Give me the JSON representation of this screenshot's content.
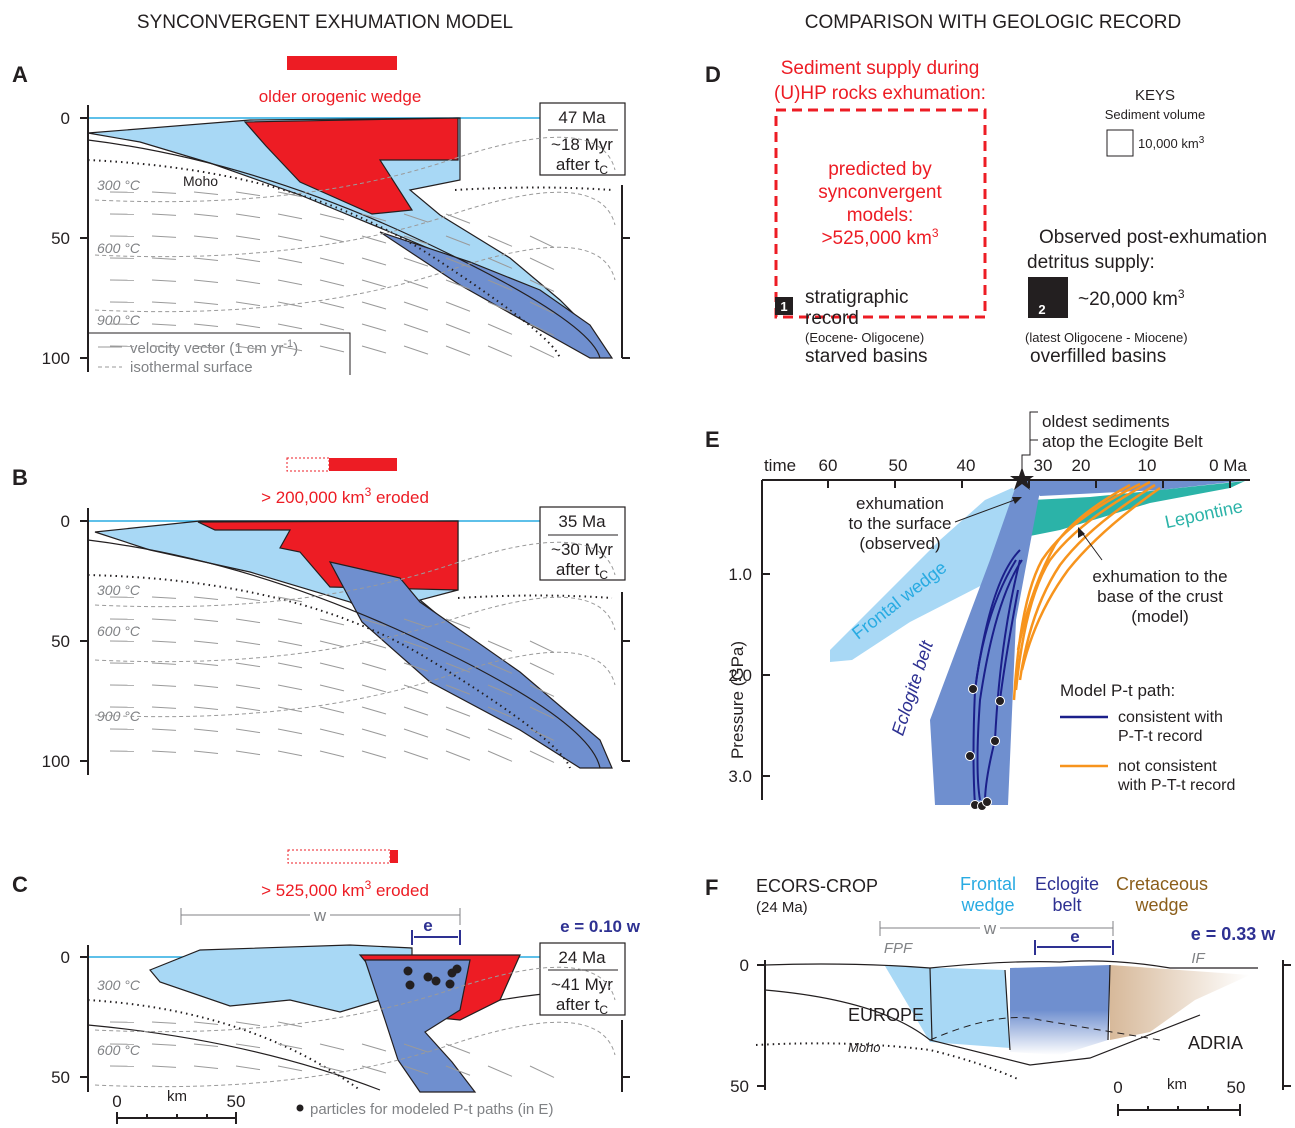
{
  "headers": {
    "left": "SYNCONVERGENT EXHUMATION MODEL",
    "right": "COMPARISON WITH GEOLOGIC RECORD"
  },
  "panel_a": {
    "letter": "A",
    "wedge_label": "older orogenic wedge",
    "age": "47 Ma",
    "time": "~18 Myr",
    "after": [
      "after t",
      "C"
    ],
    "depth_ticks": [
      "0",
      "50",
      "100"
    ],
    "isotherms": [
      "300 °C",
      "600 °C",
      "900 °C"
    ],
    "moho": "Moho",
    "legend": {
      "velocity": [
        "velocity vector (1 cm yr",
        "-1",
        ")"
      ],
      "isotherm": "isothermal surface"
    }
  },
  "panel_b": {
    "letter": "B",
    "eroded": [
      "> 200,000 km",
      "3",
      " eroded"
    ],
    "age": "35 Ma",
    "time": "~30 Myr",
    "after": [
      "after t",
      "C"
    ],
    "depth_ticks": [
      "0",
      "50",
      "100"
    ],
    "isotherms": [
      "300 °C",
      "600 °C",
      "900 °C"
    ]
  },
  "panel_c": {
    "letter": "C",
    "eroded": [
      "> 525,000 km",
      "3",
      " eroded"
    ],
    "w": "w",
    "e": "e",
    "ratio": "e = 0.10 w",
    "age": "24 Ma",
    "time": "~41 Myr",
    "after": [
      "after t",
      "C"
    ],
    "depth_ticks": [
      "0",
      "50"
    ],
    "isotherms": [
      "300 °C",
      "600 °C"
    ],
    "scale": {
      "start": "0",
      "unit": "km",
      "end": "50"
    },
    "particles_note": "particles for modeled P-t paths (in E)"
  },
  "panel_d": {
    "letter": "D",
    "title": [
      "Sediment supply during",
      "(U)HP rocks exhumation:"
    ],
    "predicted": [
      "predicted by",
      "synconvergent",
      "models:"
    ],
    "predicted_volume": [
      ">525,000 km",
      "3"
    ],
    "box1": "1",
    "record1": [
      "stratigraphic",
      "record"
    ],
    "period1": "(Eocene- Oligocene)",
    "basins1": "starved basins",
    "keys": "KEYS",
    "key_label": "Sediment volume",
    "key_value": [
      "10,000 km",
      "3"
    ],
    "observed": [
      "Observed post-exhumation",
      "detritus supply:"
    ],
    "box2": "2",
    "observed_volume": [
      "~20,000 km",
      "3"
    ],
    "period2": "(latest Oligocene - Miocene)",
    "basins2": "overfilled basins"
  },
  "panel_e": {
    "letter": "E",
    "oldest": [
      "oldest sediments",
      "atop the Eclogite Belt"
    ],
    "time_label": "time",
    "time_ticks": [
      "60",
      "50",
      "40",
      "30",
      "20",
      "10",
      "0 Ma"
    ],
    "pressure_label": "Pressure (GPa)",
    "pressure_ticks": [
      "1.0",
      "2.0",
      "3.0"
    ],
    "surface_note": [
      "exhumation",
      "to the surface",
      "(observed)"
    ],
    "lepontine": "Lepontine",
    "model_note": [
      "exhumation to the",
      "base of the crust",
      "(model)"
    ],
    "frontal": "Frontal wedge",
    "eclogite": "Eclogite belt",
    "legend_title": "Model P-t path:",
    "legend_consistent": [
      "consistent with",
      "P-T-t record"
    ],
    "legend_inconsistent": [
      "not consistent",
      "with P-T-t record"
    ]
  },
  "panel_f": {
    "letter": "F",
    "title": "ECORS-CROP",
    "age": "(24 Ma)",
    "frontal": [
      "Frontal",
      "wedge"
    ],
    "eclogite": [
      "Eclogite",
      "belt"
    ],
    "cretaceous": [
      "Cretaceous",
      "wedge"
    ],
    "w": "w",
    "e": "e",
    "fpf": "FPF",
    "if": "IF",
    "ratio": "e = 0.33 w",
    "depth_ticks": [
      "0",
      "50"
    ],
    "europe": "EUROPE",
    "moho": "Moho",
    "adria": "ADRIA",
    "scale": {
      "start": "0",
      "unit": "km",
      "end": "50"
    }
  }
}
